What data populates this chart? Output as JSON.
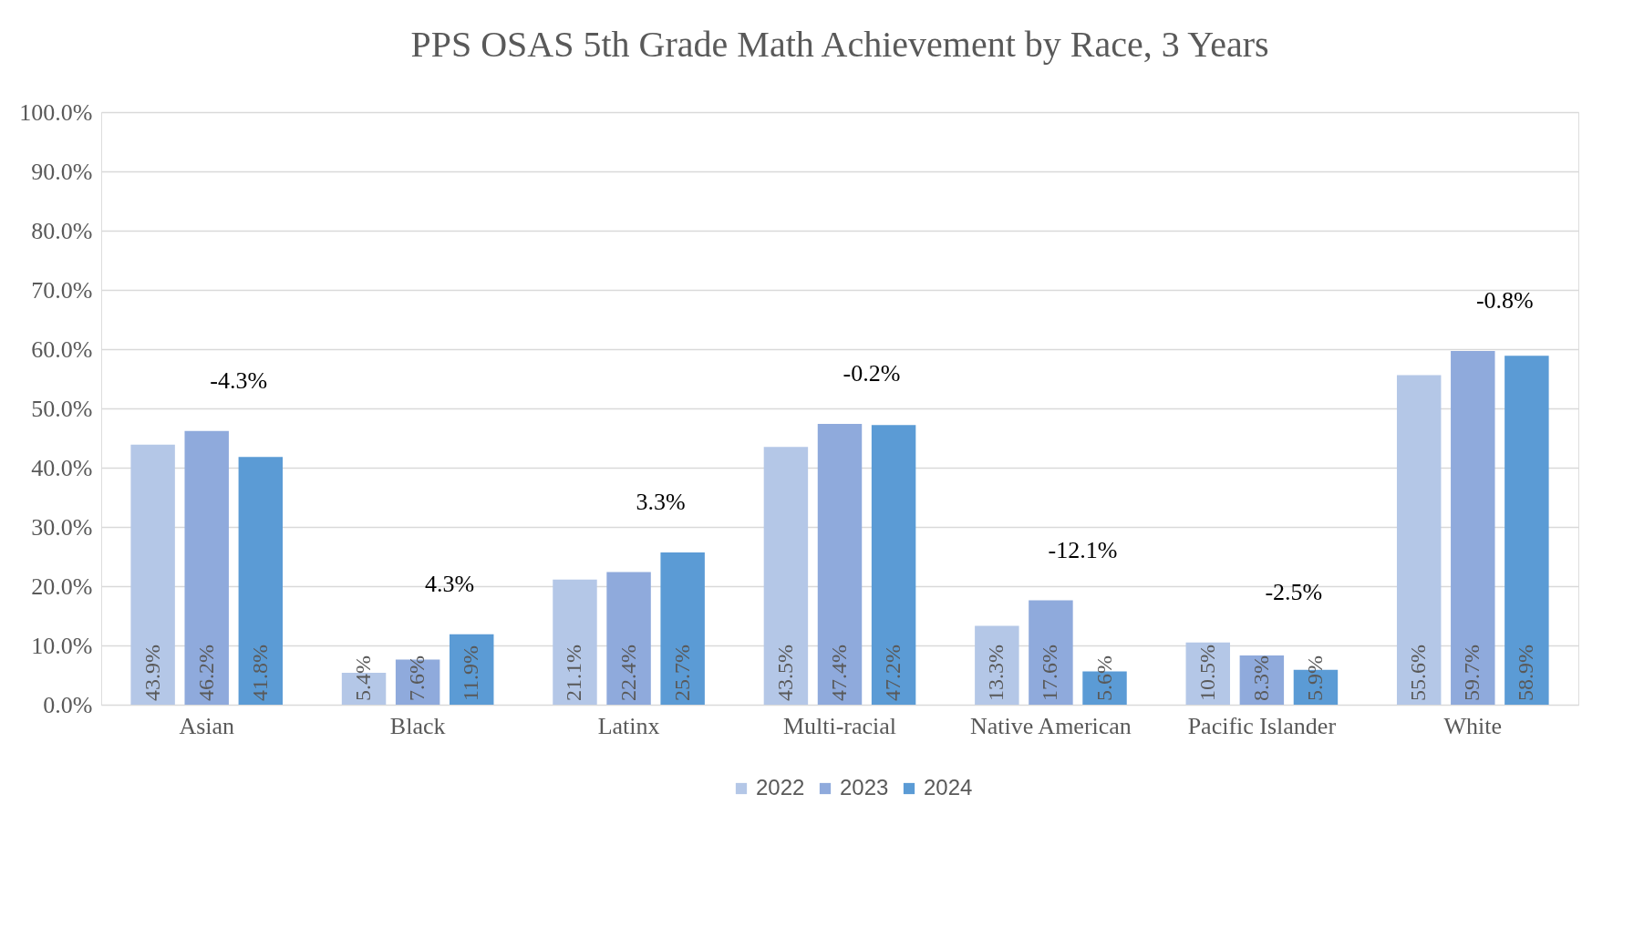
{
  "chart_data": {
    "type": "bar",
    "title": "PPS OSAS 5th Grade Math Achievement by Race, 3 Years",
    "categories": [
      "Asian",
      "Black",
      "Latinx",
      "Multi-racial",
      "Native American",
      "Pacific Islander",
      "White"
    ],
    "series": [
      {
        "name": "2022",
        "color": "#b4c7e7",
        "values": [
          43.9,
          5.4,
          21.1,
          43.5,
          13.3,
          10.5,
          55.6
        ],
        "value_labels": [
          "43.9%",
          "5.4%",
          "21.1%",
          "43.5%",
          "13.3%",
          "10.5%",
          "55.6%"
        ]
      },
      {
        "name": "2023",
        "color": "#8faadc",
        "values": [
          46.2,
          7.6,
          22.4,
          47.4,
          17.6,
          8.3,
          59.7
        ],
        "value_labels": [
          "46.2%",
          "7.6%",
          "22.4%",
          "47.4%",
          "17.6%",
          "8.3%",
          "59.7%"
        ]
      },
      {
        "name": "2024",
        "color": "#5b9bd5",
        "values": [
          41.8,
          11.9,
          25.7,
          47.2,
          5.6,
          5.9,
          58.9
        ],
        "value_labels": [
          "41.8%",
          "11.9%",
          "25.7%",
          "47.2%",
          "5.6%",
          "5.9%",
          "58.9%"
        ]
      }
    ],
    "ylim": [
      0,
      100
    ],
    "yticks": [
      {
        "value": 0,
        "label": "0.0%"
      },
      {
        "value": 10,
        "label": "10.0%"
      },
      {
        "value": 20,
        "label": "20.0%"
      },
      {
        "value": 30,
        "label": "30.0%"
      },
      {
        "value": 40,
        "label": "40.0%"
      },
      {
        "value": 50,
        "label": "50.0%"
      },
      {
        "value": 60,
        "label": "60.0%"
      },
      {
        "value": 70,
        "label": "70.0%"
      },
      {
        "value": 80,
        "label": "80.0%"
      },
      {
        "value": 90,
        "label": "90.0%"
      },
      {
        "value": 100,
        "label": "100.0%"
      }
    ],
    "annotations": [
      "-4.3%",
      "4.3%",
      "3.3%",
      "-0.2%",
      "-12.1%",
      "-2.5%",
      "-0.8%"
    ],
    "grid": "y",
    "legend": "bottom"
  }
}
